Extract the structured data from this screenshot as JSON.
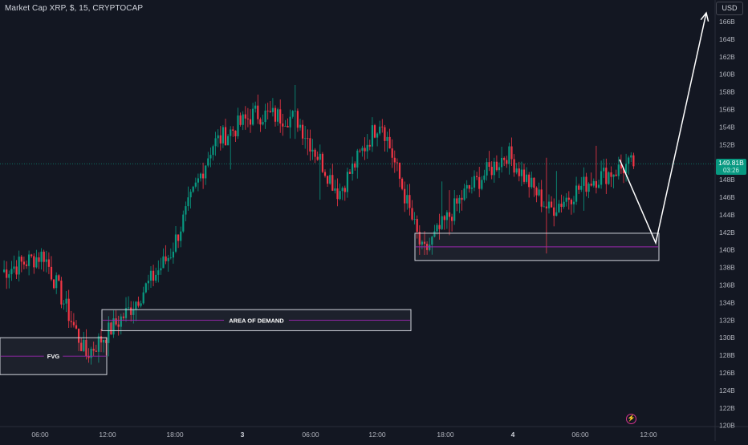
{
  "header": {
    "title": "Market Cap XRP, $, 15, CRYPTOCAP",
    "currency": "USD"
  },
  "price_tag": {
    "price": "149.81B",
    "countdown": "03:26"
  },
  "zones": [
    {
      "name": "fvg-zone",
      "label": "FVG"
    },
    {
      "name": "demand-zone",
      "label": "AREA OF DEMAND"
    },
    {
      "name": "demand-zone-2",
      "label": ""
    }
  ],
  "colors": {
    "background": "#131722",
    "up": "#089981",
    "down": "#f23645",
    "zone_border": "#d1d4dc",
    "zone_midline": "#9c27b0",
    "projection": "#ffffff",
    "current_price_line": "#089981"
  },
  "icons": {
    "logo": "tradingview-logo-icon"
  },
  "chart_data": {
    "type": "candlestick",
    "title": "Market Cap XRP, $, 15, CRYPTOCAP",
    "ylabel": "USD",
    "ylim": [
      119.5,
      167.5
    ],
    "y_ticks": [
      "166B",
      "164B",
      "162B",
      "160B",
      "158B",
      "156B",
      "154B",
      "152B",
      "150B",
      "148B",
      "146B",
      "144B",
      "142B",
      "140B",
      "138B",
      "136B",
      "134B",
      "132B",
      "130B",
      "128B",
      "126B",
      "124B",
      "122B",
      "120B"
    ],
    "x_ticks": [
      "06:00",
      "12:00",
      "18:00",
      "3",
      "06:00",
      "12:00",
      "18:00",
      "4",
      "06:00",
      "12:00"
    ],
    "last_price": 149.81,
    "key_points": [
      {
        "time": "start",
        "value": 137.5
      },
      {
        "time": "06:00",
        "value": 139.5
      },
      {
        "time": "10:00",
        "value": 128.0
      },
      {
        "time": "12:00",
        "value": 133.0
      },
      {
        "time": "16:00",
        "value": 139.5
      },
      {
        "time": "17:00",
        "value": 152.0
      },
      {
        "time": "18:00",
        "value": 155.5
      },
      {
        "time": "3 06:00",
        "value": 155.0
      },
      {
        "time": "3 08:00",
        "value": 146.5
      },
      {
        "time": "3 12:00",
        "value": 155.0
      },
      {
        "time": "3 14:00",
        "value": 139.5
      },
      {
        "time": "3 18:00",
        "value": 146.5
      },
      {
        "time": "3 21:00",
        "value": 151.0
      },
      {
        "time": "3 23:00",
        "value": 144.5
      },
      {
        "time": "4 06:00",
        "value": 148.0
      },
      {
        "time": "4 09:30",
        "value": 149.81
      }
    ],
    "zones": [
      {
        "label": "FVG",
        "y_range": [
          125.8,
          130.0
        ]
      },
      {
        "label": "AREA OF DEMAND",
        "y_range": [
          130.8,
          133.2
        ]
      },
      {
        "label": "",
        "y_range": [
          138.8,
          141.9
        ]
      }
    ],
    "projection_path": [
      {
        "time": "4 09:30",
        "value": 150.3
      },
      {
        "time": "4 11:30",
        "value": 140.8
      },
      {
        "time": "4 14:00",
        "value": 167.0
      }
    ],
    "grid": false,
    "legend": "none"
  }
}
